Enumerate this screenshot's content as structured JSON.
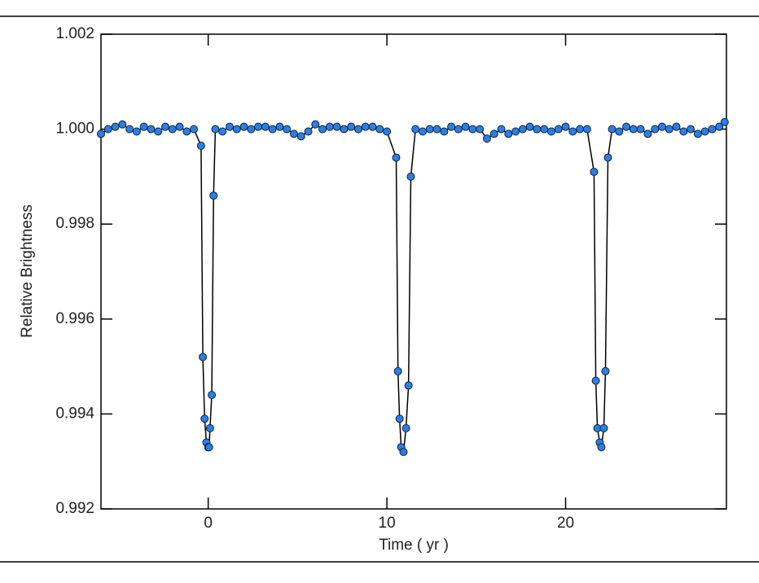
{
  "chart_data": {
    "type": "line",
    "xlabel": "Time ( yr )",
    "ylabel": "Relative Brightness",
    "x": [
      -6.0,
      -5.6,
      -5.2,
      -4.8,
      -4.4,
      -4.0,
      -3.6,
      -3.2,
      -2.8,
      -2.4,
      -2.0,
      -1.6,
      -1.2,
      -0.8,
      -0.4,
      -0.3,
      -0.2,
      -0.1,
      0.0,
      0.05,
      0.1,
      0.2,
      0.3,
      0.4,
      0.8,
      1.2,
      1.6,
      2.0,
      2.4,
      2.8,
      3.2,
      3.6,
      4.0,
      4.4,
      4.8,
      5.2,
      5.6,
      6.0,
      6.4,
      6.8,
      7.2,
      7.6,
      8.0,
      8.4,
      8.8,
      9.2,
      9.6,
      10.0,
      10.52,
      10.62,
      10.71,
      10.8,
      10.93,
      11.07,
      11.21,
      11.34,
      11.6,
      12.0,
      12.4,
      12.8,
      13.2,
      13.6,
      14.0,
      14.4,
      14.8,
      15.2,
      15.6,
      16.0,
      16.4,
      16.8,
      17.2,
      17.6,
      18.0,
      18.4,
      18.8,
      19.2,
      19.6,
      20.0,
      20.4,
      20.8,
      21.2,
      21.59,
      21.69,
      21.78,
      21.91,
      22.0,
      22.14,
      22.23,
      22.37,
      22.6,
      23.0,
      23.4,
      23.8,
      24.2,
      24.6,
      25.0,
      25.4,
      25.8,
      26.2,
      26.6,
      27.0,
      27.4,
      27.8,
      28.2,
      28.6,
      28.9
    ],
    "values": [
      0.9999,
      1.0,
      1.00005,
      1.0001,
      1.0,
      0.99995,
      1.00005,
      1.0,
      0.99995,
      1.00005,
      1.0,
      1.00005,
      0.99995,
      1.0,
      0.99965,
      0.9952,
      0.9939,
      0.9934,
      0.9933,
      0.9933,
      0.9937,
      0.9944,
      0.9986,
      1.0,
      0.99995,
      1.00005,
      1.0,
      1.00005,
      1.0,
      1.00005,
      1.00005,
      1.0,
      1.00005,
      1.0,
      0.9999,
      0.99985,
      0.99995,
      1.0001,
      1.0,
      1.00005,
      1.00005,
      1.0,
      1.00005,
      1.0,
      1.00005,
      1.00005,
      1.0,
      0.99995,
      0.9994,
      0.9949,
      0.9939,
      0.9933,
      0.9932,
      0.9937,
      0.9946,
      0.999,
      1.0,
      0.99995,
      1.0,
      1.0,
      0.99995,
      1.00005,
      1.0,
      1.00005,
      1.0,
      1.0,
      0.9998,
      0.9999,
      1.0,
      0.9999,
      0.99995,
      1.0,
      1.00005,
      1.0,
      1.0,
      0.99995,
      1.0,
      1.00005,
      0.99995,
      1.0,
      1.0,
      0.9991,
      0.9947,
      0.9937,
      0.9934,
      0.9933,
      0.9937,
      0.9949,
      0.9994,
      1.0,
      0.99995,
      1.00005,
      1.0,
      1.0,
      0.9999,
      1.0,
      1.00005,
      1.0,
      1.00005,
      0.99995,
      1.0,
      0.9999,
      0.99995,
      1.0,
      1.00005,
      1.00015
    ],
    "color": "#2a7fe6",
    "line_color": "#000000",
    "xlim": [
      -6,
      29
    ],
    "ylim": [
      0.992,
      1.002
    ],
    "xticks": [
      0,
      10,
      20
    ],
    "yticks": [
      0.992,
      0.994,
      0.996,
      0.998,
      {
        "value": 1.0,
        "label": "1.000"
      },
      1.002
    ]
  }
}
